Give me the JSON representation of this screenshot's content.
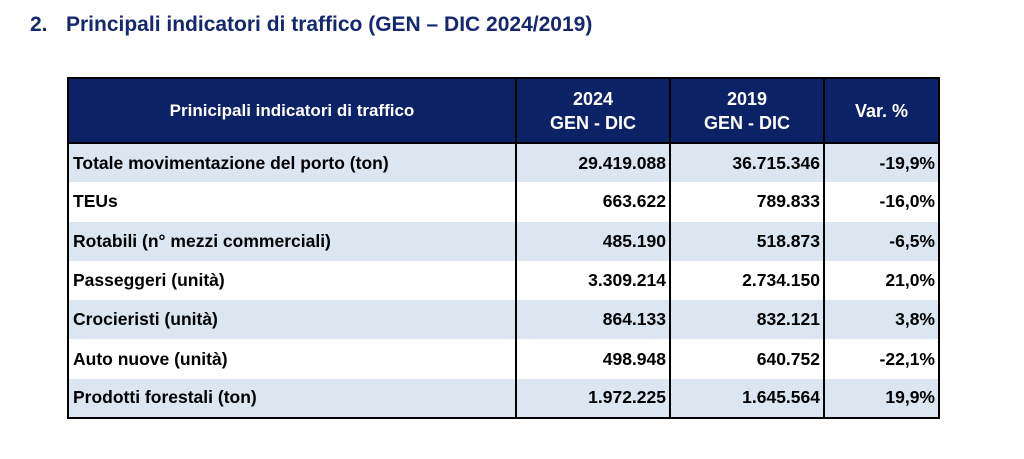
{
  "section": {
    "number": "2.",
    "title": "Principali indicatori di traffico (GEN – DIC 2024/2019)"
  },
  "table": {
    "headers": [
      {
        "line1": "Prinicipali indicatori di traffico",
        "line2": ""
      },
      {
        "line1": "2024",
        "line2": "GEN - DIC"
      },
      {
        "line1": "2019",
        "line2": "GEN - DIC"
      },
      {
        "line1": "Var. %",
        "line2": ""
      }
    ],
    "rows": [
      {
        "label": "Totale movimentazione del porto (ton)",
        "y2024": "29.419.088",
        "y2019": "36.715.346",
        "var": "-19,9%"
      },
      {
        "label": "TEUs",
        "y2024": "663.622",
        "y2019": "789.833",
        "var": "-16,0%"
      },
      {
        "label": "Rotabili (n° mezzi commerciali)",
        "y2024": "485.190",
        "y2019": "518.873",
        "var": "-6,5%"
      },
      {
        "label": "Passeggeri (unità)",
        "y2024": "3.309.214",
        "y2019": "2.734.150",
        "var": "21,0%"
      },
      {
        "label": "Crocieristi (unità)",
        "y2024": "864.133",
        "y2019": "832.121",
        "var": "3,8%"
      },
      {
        "label": "Auto nuove (unità)",
        "y2024": "498.948",
        "y2019": "640.752",
        "var": "-22,1%"
      },
      {
        "label": "Prodotti forestali (ton)",
        "y2024": "1.972.225",
        "y2019": "1.645.564",
        "var": "19,9%"
      }
    ]
  },
  "colors": {
    "header_bg": "#0b2266",
    "title": "#14286e",
    "alt_row": "#dce6f1"
  }
}
